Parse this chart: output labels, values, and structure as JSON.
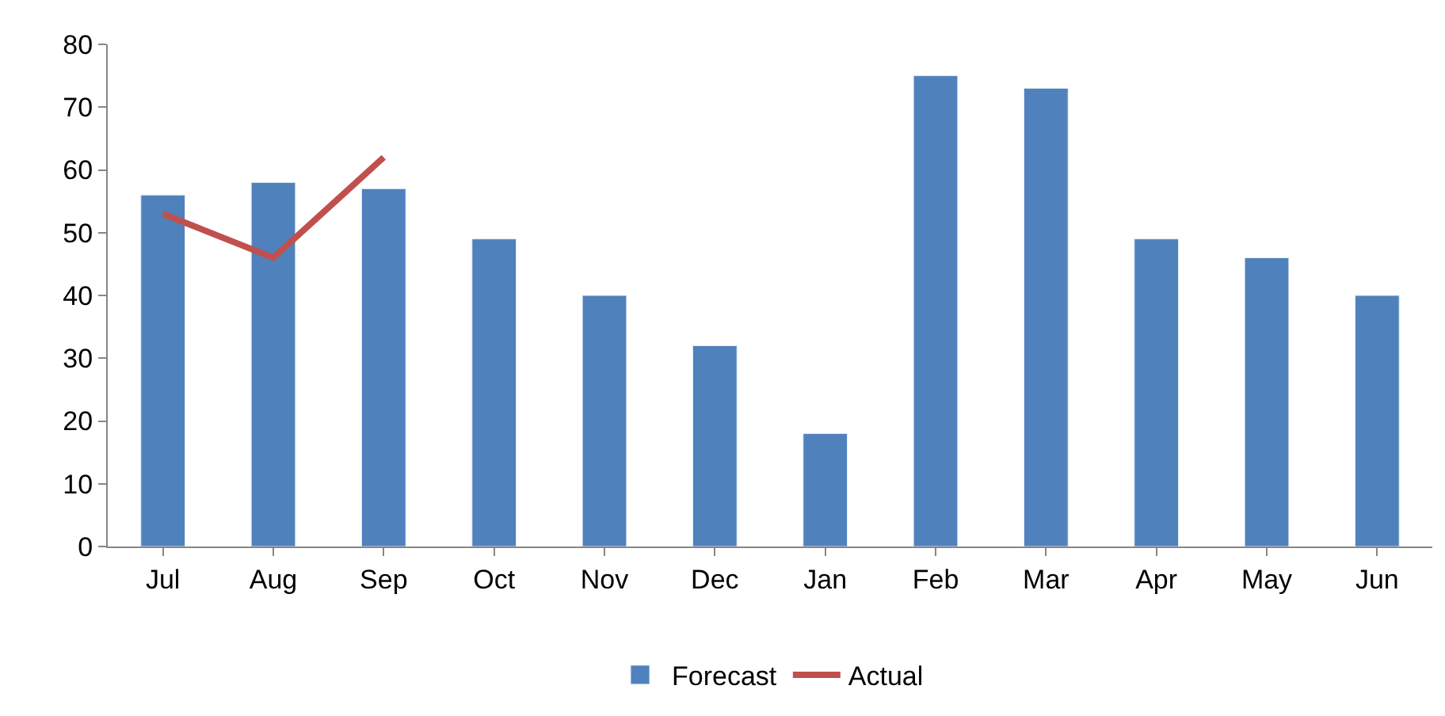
{
  "chart_data": {
    "type": "bar",
    "categories": [
      "Jul",
      "Aug",
      "Sep",
      "Oct",
      "Nov",
      "Dec",
      "Jan",
      "Feb",
      "Mar",
      "Apr",
      "May",
      "Jun"
    ],
    "series": [
      {
        "name": "Forecast",
        "color": "#4f81bd",
        "values": [
          56,
          58,
          57,
          49,
          40,
          32,
          18,
          75,
          73,
          49,
          46,
          40
        ]
      },
      {
        "name": "Actual",
        "type": "line",
        "color": "#c0504d",
        "values": [
          53,
          46,
          62,
          null,
          null,
          null,
          null,
          null,
          null,
          null,
          null,
          null
        ]
      }
    ],
    "ylim": [
      0,
      80
    ],
    "yticks": [
      0,
      10,
      20,
      30,
      40,
      50,
      60,
      70,
      80
    ],
    "grid": false,
    "legend": "bottom",
    "marker": "none",
    "line_style": "solid"
  }
}
